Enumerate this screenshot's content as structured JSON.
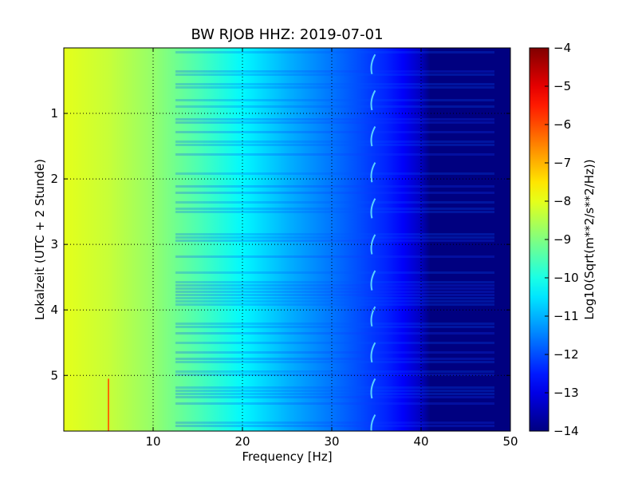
{
  "chart_data": {
    "type": "heatmap",
    "title": "BW RJOB HHZ: 2019-07-01",
    "xlabel": "Frequency [Hz]",
    "ylabel": "Lokalzeit (UTC + 2 Stunde)",
    "xlim": [
      0,
      50
    ],
    "ylim": [
      5.85,
      0
    ],
    "x_ticks": [
      10,
      20,
      30,
      40,
      50
    ],
    "y_ticks": [
      1,
      2,
      3,
      4,
      5
    ],
    "grid": true,
    "colorbar": {
      "label": "Log10(Sqrt(m**2/s**2/Hz))",
      "range": [
        -14,
        -4
      ],
      "ticks": [
        -4,
        -5,
        -6,
        -7,
        -8,
        -9,
        -10,
        -11,
        -12,
        -13,
        -14
      ],
      "colormap": "jet"
    },
    "values_description_profile": {
      "frequency_hz": [
        0,
        5,
        10,
        15,
        20,
        25,
        30,
        33,
        36,
        38,
        40,
        41,
        50
      ],
      "log10_amplitude": [
        -8.0,
        -8.3,
        -8.8,
        -9.5,
        -10.3,
        -11.0,
        -11.6,
        -12.0,
        -12.4,
        -12.8,
        -13.4,
        -14.0,
        -14.0
      ]
    },
    "features": {
      "tonal_line_hz": 34.5,
      "vertical_line_hz": 5,
      "vertical_line_hours": [
        5.05,
        5.85
      ]
    }
  },
  "colors": {
    "background": "#ffffff",
    "plot_border": "#000000",
    "grid": "#000000"
  }
}
